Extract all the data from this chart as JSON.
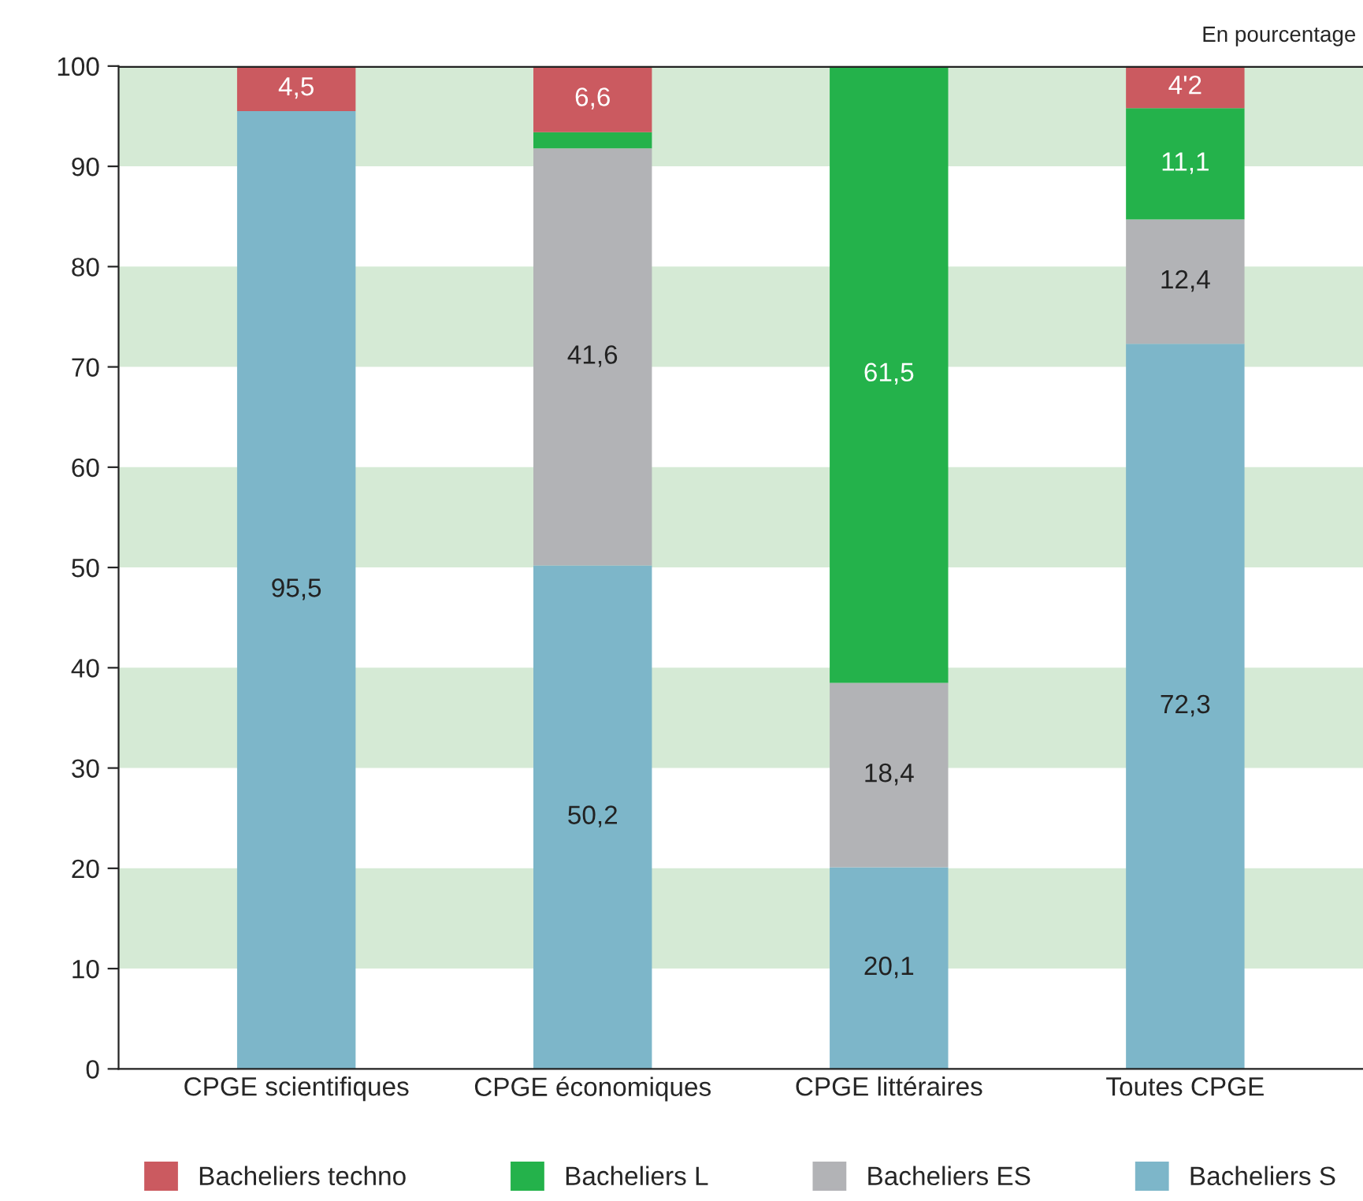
{
  "chart_data": {
    "type": "bar",
    "stacked": true,
    "categories": [
      "CPGE scientifiques",
      "CPGE économiques",
      "CPGE littéraires",
      "Toutes CPGE"
    ],
    "series": [
      {
        "name": "Bacheliers S",
        "color": "#7db6c9",
        "values": [
          95.5,
          50.2,
          20.1,
          72.3
        ],
        "value_labels": [
          "95,5",
          "50,2",
          "20,1",
          "72,3"
        ]
      },
      {
        "name": "Bacheliers ES",
        "color": "#b2b3b6",
        "values": [
          null,
          41.6,
          18.4,
          12.4
        ],
        "value_labels": [
          null,
          "41,6",
          "18,4",
          "12,4"
        ]
      },
      {
        "name": "Bacheliers L",
        "color": "#24b24b",
        "values": [
          null,
          1.6,
          61.5,
          11.1
        ],
        "value_labels": [
          null,
          null,
          "61,5",
          "11,1"
        ]
      },
      {
        "name": "Bacheliers techno",
        "color": "#cb5a60",
        "values": [
          4.5,
          6.6,
          null,
          4.2
        ],
        "value_labels": [
          "4,5",
          "6,6",
          null,
          "4'2"
        ]
      }
    ],
    "ylim": [
      0,
      100
    ],
    "yticks": [
      0,
      10,
      20,
      30,
      40,
      50,
      60,
      70,
      80,
      90,
      100
    ],
    "bands": [
      {
        "axis": "y",
        "from": 10,
        "to": 20,
        "color": "#d5ead5"
      },
      {
        "axis": "y",
        "from": 30,
        "to": 40,
        "color": "#d5ead5"
      },
      {
        "axis": "y",
        "from": 50,
        "to": 60,
        "color": "#d5ead5"
      },
      {
        "axis": "y",
        "from": 70,
        "to": 80,
        "color": "#d5ead5"
      },
      {
        "axis": "y",
        "from": 90,
        "to": 100,
        "color": "#d5ead5"
      }
    ],
    "annotations": [
      "En pourcentage"
    ],
    "legend": "bottom",
    "grid": false
  }
}
